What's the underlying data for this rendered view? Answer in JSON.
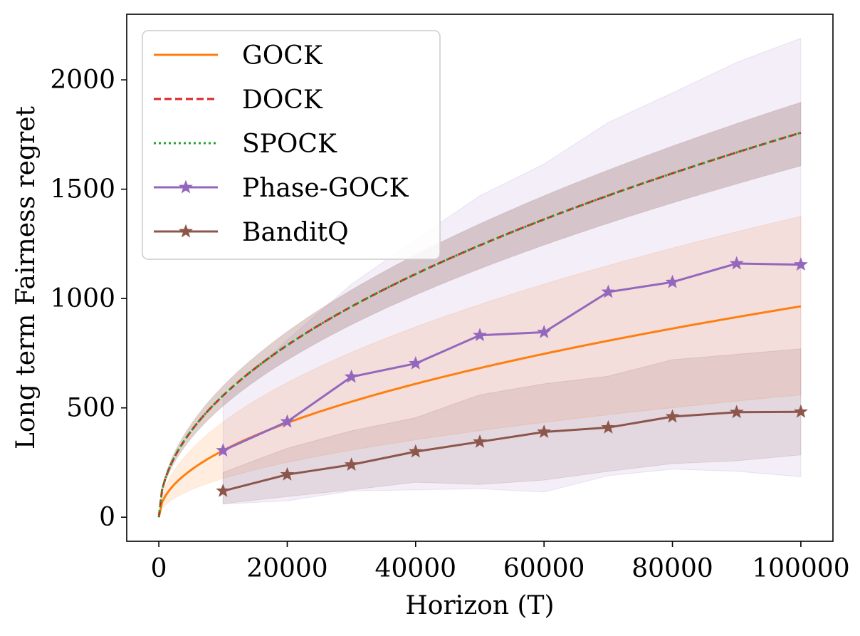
{
  "chart_data": {
    "type": "line",
    "xlabel": "Horizon (T)",
    "ylabel": "Long term Fairness regret",
    "xlim": [
      -5000,
      105000
    ],
    "ylim": [
      -110,
      2300
    ],
    "xticks": [
      0,
      20000,
      40000,
      60000,
      80000,
      100000
    ],
    "yticks": [
      0,
      500,
      1000,
      1500,
      2000
    ],
    "grid": false,
    "legend_position": "top-left",
    "series": [
      {
        "name": "GOCK",
        "color": "#ff7f0e",
        "style": "solid",
        "marker": "none",
        "function": "sqrt",
        "coef": 3.05,
        "band_coef": [
          1.77,
          4.35
        ],
        "band_color": "#ff7f0e",
        "band_opacity": 0.13
      },
      {
        "name": "DOCK",
        "color": "#d62728",
        "style": "dashed",
        "marker": "none",
        "function": "sqrt",
        "coef": 5.56,
        "band_coef": [
          5.08,
          6.0
        ],
        "band_color": "#8c564b",
        "band_opacity": 0.28
      },
      {
        "name": "SPOCK",
        "color": "#2ca02c",
        "style": "dotted",
        "marker": "none",
        "function": "sqrt",
        "coef": 5.56,
        "band_coef": [
          5.08,
          6.0
        ],
        "band_color": "#8c564b",
        "band_opacity": 0.0
      },
      {
        "name": "Phase-GOCK",
        "color": "#9467bd",
        "style": "solid",
        "marker": "star",
        "x": [
          10000,
          20000,
          30000,
          40000,
          50000,
          60000,
          70000,
          80000,
          90000,
          100000
        ],
        "y": [
          305,
          437,
          642,
          703,
          832,
          846,
          1030,
          1075,
          1160,
          1155
        ],
        "lower": [
          60,
          75,
          120,
          125,
          130,
          115,
          190,
          220,
          210,
          185
        ],
        "upper": [
          540,
          810,
          1065,
          1270,
          1470,
          1615,
          1805,
          1940,
          2080,
          2190
        ],
        "band_color": "#9467bd",
        "band_opacity": 0.11
      },
      {
        "name": "BanditQ",
        "color": "#8c564b",
        "style": "solid",
        "marker": "star",
        "x": [
          10000,
          20000,
          30000,
          40000,
          50000,
          60000,
          70000,
          80000,
          90000,
          100000
        ],
        "y": [
          120,
          195,
          240,
          300,
          345,
          390,
          410,
          460,
          480,
          482
        ],
        "lower": [
          62,
          95,
          125,
          160,
          150,
          170,
          210,
          245,
          258,
          285
        ],
        "upper": [
          205,
          315,
          395,
          455,
          560,
          610,
          645,
          720,
          745,
          770
        ],
        "band_color": "#8c564b",
        "band_opacity": 0.14
      }
    ]
  }
}
